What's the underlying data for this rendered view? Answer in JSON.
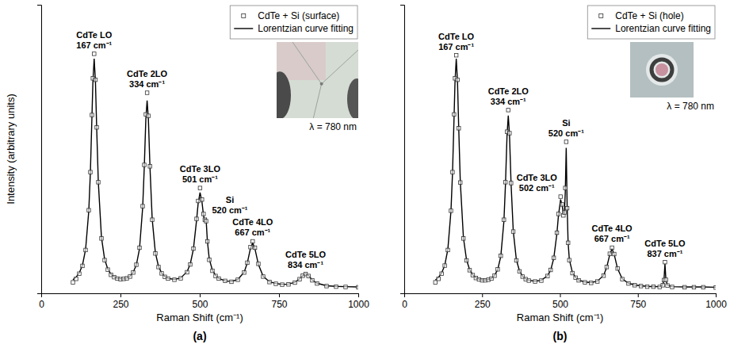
{
  "chart_data": [
    {
      "type": "line",
      "panel_label": "(a)",
      "x_label": "Raman Shift (cm⁻¹)",
      "y_label": "Intensity (arbitrary units)",
      "inset_label": "λ = 780 nm",
      "xlim": [
        0,
        1000
      ],
      "xticks": [
        0,
        250,
        500,
        750,
        1000
      ],
      "ylim": [
        0,
        100
      ],
      "yticks": [],
      "tick_labels": "x",
      "grid": false,
      "legend": "upper right",
      "x": [
        100,
        110,
        120,
        130,
        140,
        150,
        155,
        160,
        163,
        167,
        171,
        175,
        180,
        190,
        200,
        210,
        220,
        230,
        240,
        250,
        260,
        270,
        280,
        290,
        300,
        310,
        320,
        325,
        330,
        334,
        338,
        343,
        350,
        360,
        370,
        380,
        390,
        400,
        420,
        440,
        460,
        470,
        480,
        490,
        495,
        501,
        507,
        512,
        516,
        520,
        524,
        530,
        540,
        550,
        560,
        580,
        600,
        620,
        640,
        650,
        660,
        667,
        674,
        685,
        700,
        720,
        740,
        760,
        780,
        800,
        815,
        825,
        834,
        843,
        855,
        870,
        900,
        930,
        960,
        1000
      ],
      "series": [
        {
          "name": "CdTe + Si (surface)",
          "type": "scatter",
          "marker": "square",
          "color": "#333333",
          "values": [
            3.8,
            5.0,
            6.8,
            9.5,
            15.0,
            28.8,
            42.0,
            61.8,
            74.5,
            83.0,
            74.0,
            57.5,
            38.5,
            19.0,
            11.5,
            8.2,
            6.4,
            5.6,
            5.1,
            4.9,
            5.0,
            5.2,
            5.8,
            7.2,
            9.9,
            15.8,
            30.2,
            44.5,
            62.0,
            69.5,
            61.5,
            44.0,
            25.5,
            13.8,
            9.1,
            6.9,
            5.7,
            5.1,
            4.7,
            5.2,
            7.3,
            10.0,
            15.5,
            25.8,
            32.0,
            36.5,
            32.5,
            27.5,
            25.5,
            25.0,
            18.0,
            11.6,
            7.8,
            6.0,
            5.1,
            4.3,
            4.0,
            4.7,
            7.2,
            10.6,
            16.0,
            18.0,
            15.8,
            10.2,
            5.8,
            3.9,
            3.3,
            3.0,
            3.1,
            3.7,
            4.9,
            6.1,
            6.7,
            6.0,
            4.5,
            3.4,
            2.5,
            2.3,
            2.2,
            2.1
          ]
        },
        {
          "name": "Lorentzian curve fitting",
          "type": "line",
          "line_style": "solid",
          "color": "#000000",
          "values": [
            4.7,
            5.6,
            7.1,
            9.7,
            15.2,
            28.5,
            41.7,
            61.2,
            73.3,
            81.3,
            73.5,
            57.1,
            38.8,
            19.4,
            11.8,
            8.4,
            6.6,
            5.7,
            5.2,
            5.0,
            5.0,
            5.3,
            5.9,
            7.3,
            9.8,
            15.4,
            29.7,
            43.5,
            60.4,
            66.8,
            60.4,
            43.8,
            25.8,
            14.1,
            9.3,
            7.0,
            5.8,
            5.2,
            4.8,
            5.3,
            7.5,
            10.1,
            15.3,
            25.3,
            31.2,
            34.9,
            31.7,
            26.9,
            25.0,
            25.7,
            18.3,
            11.9,
            8.0,
            6.2,
            5.2,
            4.3,
            4.1,
            4.8,
            7.3,
            10.5,
            15.6,
            17.5,
            15.5,
            10.0,
            5.9,
            4.0,
            3.4,
            3.1,
            3.2,
            3.8,
            5.0,
            6.2,
            6.8,
            6.2,
            4.6,
            3.5,
            2.6,
            2.4,
            2.3,
            2.2
          ]
        }
      ],
      "annotations": [
        {
          "text": "CdTe LO",
          "subtext": "167 cm⁻¹",
          "x": 167
        },
        {
          "text": "CdTe 2LO",
          "subtext": "334 cm⁻¹",
          "x": 334
        },
        {
          "text": "CdTe 3LO",
          "subtext": "501 cm⁻¹",
          "x": 501
        },
        {
          "text": "Si",
          "subtext": "520 cm⁻¹",
          "x": 520
        },
        {
          "text": "CdTe 4LO",
          "subtext": "667 cm⁻¹",
          "x": 667
        },
        {
          "text": "CdTe 5LO",
          "subtext": "834 cm⁻¹",
          "x": 834
        }
      ]
    },
    {
      "type": "line",
      "panel_label": "(b)",
      "x_label": "Raman Shift (cm⁻¹)",
      "inset_label": "λ = 780 nm",
      "xlim": [
        0,
        1000
      ],
      "xticks": [
        0,
        250,
        500,
        750,
        1000
      ],
      "ylim": [
        0,
        100
      ],
      "yticks": [],
      "tick_labels": "x",
      "grid": false,
      "legend": "upper right",
      "x": [
        100,
        110,
        120,
        130,
        140,
        150,
        155,
        160,
        163,
        167,
        171,
        175,
        180,
        190,
        200,
        210,
        220,
        230,
        240,
        250,
        260,
        270,
        280,
        290,
        300,
        310,
        320,
        325,
        330,
        334,
        338,
        343,
        350,
        360,
        370,
        380,
        390,
        400,
        420,
        440,
        460,
        470,
        480,
        490,
        495,
        502,
        507,
        511,
        514,
        517,
        520,
        523,
        526,
        530,
        540,
        550,
        560,
        580,
        600,
        620,
        640,
        650,
        660,
        667,
        674,
        685,
        700,
        720,
        740,
        760,
        780,
        800,
        820,
        830,
        834,
        837,
        840,
        845,
        860,
        900,
        930,
        960,
        1000
      ],
      "series": [
        {
          "name": "CdTe + Si (hole)",
          "type": "scatter",
          "marker": "square",
          "color": "#333333",
          "values": [
            3.8,
            5.0,
            6.8,
            9.6,
            15.0,
            28.6,
            42.0,
            62.0,
            74.5,
            82.5,
            74.0,
            57.2,
            38.4,
            19.0,
            11.4,
            8.0,
            6.3,
            5.3,
            4.8,
            4.5,
            4.5,
            4.7,
            5.1,
            6.1,
            8.3,
            13.0,
            25.5,
            38.5,
            56.0,
            63.5,
            55.5,
            38.2,
            21.4,
            11.4,
            7.6,
            5.8,
            4.9,
            4.4,
            4.1,
            4.4,
            6.0,
            8.1,
            12.3,
            21.0,
            27.5,
            33.5,
            30.8,
            27.0,
            28.0,
            36.5,
            52.5,
            29.5,
            17.5,
            11.5,
            7.0,
            5.4,
            4.5,
            3.8,
            3.6,
            4.1,
            6.1,
            9.1,
            13.7,
            15.8,
            13.6,
            8.6,
            4.9,
            3.4,
            2.8,
            2.5,
            2.3,
            2.3,
            2.2,
            2.8,
            4.6,
            10.8,
            4.7,
            2.7,
            2.2,
            2.1,
            2.1,
            2.1,
            2.0
          ]
        },
        {
          "name": "Lorentzian curve fitting",
          "type": "line",
          "line_style": "solid",
          "color": "#000000",
          "values": [
            4.6,
            5.5,
            7.0,
            9.7,
            15.2,
            28.5,
            41.7,
            61.2,
            73.3,
            81.3,
            73.4,
            57.0,
            38.7,
            19.3,
            11.6,
            8.2,
            6.4,
            5.4,
            4.9,
            4.6,
            4.6,
            4.8,
            5.2,
            6.2,
            8.2,
            12.8,
            25.0,
            37.8,
            54.7,
            61.6,
            54.7,
            37.9,
            21.6,
            11.6,
            7.8,
            5.9,
            5.0,
            4.5,
            4.2,
            4.5,
            6.1,
            8.0,
            12.1,
            20.6,
            26.9,
            32.5,
            30.4,
            27.4,
            27.4,
            35.0,
            50.4,
            30.3,
            17.8,
            11.7,
            7.2,
            5.5,
            4.6,
            3.9,
            3.7,
            4.2,
            6.2,
            9.0,
            13.5,
            15.4,
            13.5,
            8.5,
            5.0,
            3.5,
            2.9,
            2.6,
            2.4,
            2.35,
            2.3,
            2.9,
            4.8,
            10.3,
            4.8,
            2.8,
            2.3,
            2.2,
            2.2,
            2.2,
            2.1
          ]
        }
      ],
      "annotations": [
        {
          "text": "CdTe LO",
          "subtext": "167 cm⁻¹",
          "x": 167
        },
        {
          "text": "CdTe 2LO",
          "subtext": "334 cm⁻¹",
          "x": 334
        },
        {
          "text": "CdTe 3LO",
          "subtext": "502 cm⁻¹",
          "x": 502
        },
        {
          "text": "Si",
          "subtext": "520 cm⁻¹",
          "x": 520
        },
        {
          "text": "CdTe 4LO",
          "subtext": "667 cm⁻¹",
          "x": 667
        },
        {
          "text": "CdTe 5LO",
          "subtext": "837 cm⁻¹",
          "x": 837
        }
      ]
    }
  ]
}
